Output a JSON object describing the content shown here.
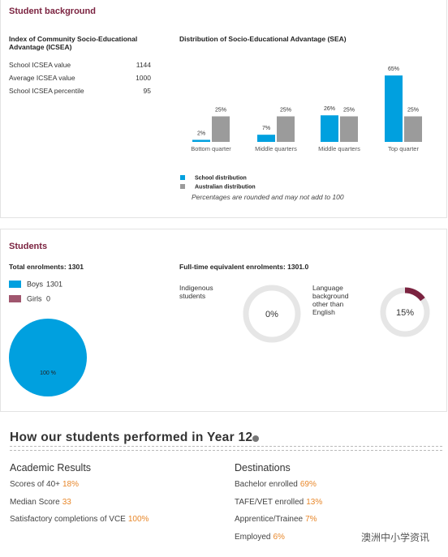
{
  "background": {
    "title": "Student background",
    "icsea": {
      "title": "Index of Community Socio-Educational Advantage (ICSEA)",
      "rows": [
        [
          "School ICSEA value",
          1144
        ],
        [
          "Average ICSEA value",
          1000
        ],
        [
          "School ICSEA percentile",
          95
        ]
      ]
    },
    "sea": {
      "title": "Distribution of Socio-Educational Advantage (SEA)",
      "categories": [
        "Bottom quarter",
        "Middle quarters",
        "Middle quarters",
        "Top quarter"
      ],
      "series": [
        {
          "name": "School distribution",
          "color": "#00a0df",
          "values": [
            2,
            7,
            26,
            65
          ],
          "value_labels": [
            "2%",
            "7%",
            "26%",
            "65%"
          ]
        },
        {
          "name": "Australian distribution",
          "color": "#9b9b9b",
          "values": [
            25,
            25,
            25,
            25
          ],
          "value_labels": [
            "25%",
            "25%",
            "25%",
            "25%"
          ]
        }
      ],
      "note": "Percentages are rounded and may not add to 100"
    }
  },
  "students": {
    "title": "Students",
    "total": "Total enrolments: 1301",
    "pie": {
      "series": [
        {
          "name": "Boys",
          "value": 1301,
          "color": "#00a0df"
        },
        {
          "name": "Girls",
          "value": 0,
          "color": "#a0566e"
        }
      ],
      "label": "100 %"
    },
    "fte": "Full-time equivalent enrolments: 1301.0",
    "donuts": [
      {
        "label": "Indigenous students",
        "value": 0,
        "value_label": "0%"
      },
      {
        "label": "Language background other than English",
        "value": 15,
        "value_label": "15%"
      }
    ]
  },
  "performance": {
    "title": "How our students performed in Year 12",
    "academic": {
      "title": "Academic Results",
      "items": [
        [
          "Scores of 40+",
          "18%"
        ],
        [
          "Median Score",
          "33"
        ],
        [
          "Satisfactory completions of VCE",
          "100%"
        ]
      ]
    },
    "destinations": {
      "title": "Destinations",
      "items": [
        [
          "Bachelor enrolled",
          "69%"
        ],
        [
          "TAFE/VET enrolled",
          "13%"
        ],
        [
          "Apprentice/Trainee",
          "7%"
        ],
        [
          "Employed",
          "6%"
        ]
      ]
    }
  },
  "watermark": "澳洲中小学资讯"
}
